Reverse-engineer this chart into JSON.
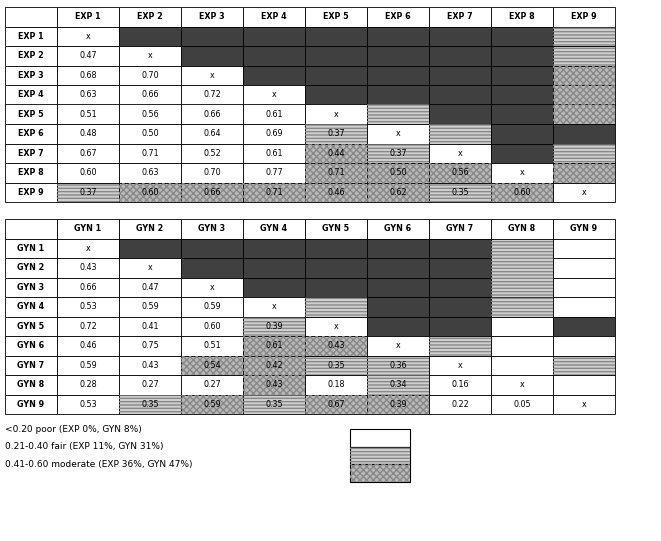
{
  "exp_labels": [
    "EXP 1",
    "EXP 2",
    "EXP 3",
    "EXP 4",
    "EXP 5",
    "EXP 6",
    "EXP 7",
    "EXP 8",
    "EXP 9"
  ],
  "gyn_labels": [
    "GYN 1",
    "GYN 2",
    "GYN 3",
    "GYN 4",
    "GYN 5",
    "GYN 6",
    "GYN 7",
    "GYN 8",
    "GYN 9"
  ],
  "exp_data": [
    [
      "x",
      "",
      "",
      "",
      "",
      "",
      "",
      "",
      ""
    ],
    [
      "0.47",
      "x",
      "",
      "",
      "",
      "",
      "",
      "",
      ""
    ],
    [
      "0.68",
      "0.70",
      "x",
      "",
      "",
      "",
      "",
      "",
      ""
    ],
    [
      "0.63",
      "0.66",
      "0.72",
      "x",
      "",
      "",
      "",
      "",
      ""
    ],
    [
      "0.51",
      "0.56",
      "0.66",
      "0.61",
      "x",
      "",
      "",
      "",
      ""
    ],
    [
      "0.48",
      "0.50",
      "0.64",
      "0.69",
      "0.37",
      "x",
      "",
      "",
      ""
    ],
    [
      "0.67",
      "0.71",
      "0.52",
      "0.61",
      "0.44",
      "0.37",
      "x",
      "",
      ""
    ],
    [
      "0.60",
      "0.63",
      "0.70",
      "0.77",
      "0.71",
      "0.50",
      "0.56",
      "x",
      ""
    ],
    [
      "0.37",
      "0.60",
      "0.66",
      "0.71",
      "0.46",
      "0.62",
      "0.35",
      "0.60",
      "x"
    ]
  ],
  "gyn_data": [
    [
      "x",
      "",
      "",
      "",
      "",
      "",
      "",
      "",
      ""
    ],
    [
      "0.43",
      "x",
      "",
      "",
      "",
      "",
      "",
      "",
      ""
    ],
    [
      "0.66",
      "0.47",
      "x",
      "",
      "",
      "",
      "",
      "",
      ""
    ],
    [
      "0.53",
      "0.59",
      "0.59",
      "x",
      "",
      "",
      "",
      "",
      ""
    ],
    [
      "0.72",
      "0.41",
      "0.60",
      "0.39",
      "x",
      "",
      "",
      "",
      ""
    ],
    [
      "0.46",
      "0.75",
      "0.51",
      "0.61",
      "0.43",
      "x",
      "",
      "",
      ""
    ],
    [
      "0.59",
      "0.43",
      "0.54",
      "0.42",
      "0.35",
      "0.36",
      "x",
      "",
      ""
    ],
    [
      "0.28",
      "0.27",
      "0.27",
      "0.43",
      "0.18",
      "0.34",
      "0.16",
      "x",
      ""
    ],
    [
      "0.53",
      "0.35",
      "0.59",
      "0.35",
      "0.67",
      "0.39",
      "0.22",
      "0.05",
      "x"
    ]
  ],
  "exp_colors": [
    [
      "white",
      "dark",
      "dark",
      "dark",
      "dark",
      "dark",
      "dark",
      "dark",
      "hline"
    ],
    [
      "white",
      "white",
      "dark",
      "dark",
      "dark",
      "dark",
      "dark",
      "dark",
      "hline"
    ],
    [
      "white",
      "white",
      "white",
      "dark",
      "dark",
      "dark",
      "dark",
      "dark",
      "cross"
    ],
    [
      "white",
      "white",
      "white",
      "white",
      "dark",
      "dark",
      "dark",
      "dark",
      "cross"
    ],
    [
      "white",
      "white",
      "white",
      "white",
      "white",
      "hline",
      "dark",
      "dark",
      "cross"
    ],
    [
      "white",
      "white",
      "white",
      "white",
      "hline",
      "white",
      "hline",
      "dark",
      "dark"
    ],
    [
      "white",
      "white",
      "white",
      "white",
      "cross",
      "hline",
      "white",
      "dark",
      "hline"
    ],
    [
      "white",
      "white",
      "white",
      "white",
      "cross",
      "cross",
      "cross",
      "white",
      "cross"
    ],
    [
      "hline",
      "cross",
      "cross",
      "cross",
      "cross",
      "cross",
      "hline",
      "cross",
      "white"
    ]
  ],
  "gyn_colors": [
    [
      "white",
      "dark",
      "dark",
      "dark",
      "dark",
      "dark",
      "dark",
      "hline",
      "white"
    ],
    [
      "white",
      "white",
      "dark",
      "dark",
      "dark",
      "dark",
      "dark",
      "hline",
      "white"
    ],
    [
      "white",
      "white",
      "white",
      "dark",
      "dark",
      "dark",
      "dark",
      "hline",
      "white"
    ],
    [
      "white",
      "white",
      "white",
      "white",
      "hline",
      "dark",
      "dark",
      "hline",
      "white"
    ],
    [
      "white",
      "white",
      "white",
      "hline",
      "white",
      "dark",
      "dark",
      "white",
      "dark"
    ],
    [
      "white",
      "white",
      "white",
      "cross",
      "cross",
      "white",
      "hline",
      "white",
      "white"
    ],
    [
      "white",
      "white",
      "cross",
      "cross",
      "hline",
      "hline",
      "white",
      "white",
      "hline"
    ],
    [
      "white",
      "white",
      "white",
      "cross",
      "white",
      "hline",
      "white",
      "white",
      "white"
    ],
    [
      "white",
      "hline",
      "cross",
      "hline",
      "cross",
      "cross",
      "white",
      "white",
      "white"
    ]
  ],
  "legend_texts": [
    "<0.20 poor (EXP 0%, GYN 8%)",
    "0.21-0.40 fair (EXP 11%, GYN 31%)",
    "0.41-0.60 moderate (EXP 36%, GYN 47%)"
  ],
  "dark_color": "#404040",
  "cross_color": "#b8b8b8",
  "hline_color": "#d0d0d0",
  "white_color": "#ffffff",
  "border_color": "#000000",
  "fig_width": 6.61,
  "fig_height": 5.41,
  "dpi": 100
}
